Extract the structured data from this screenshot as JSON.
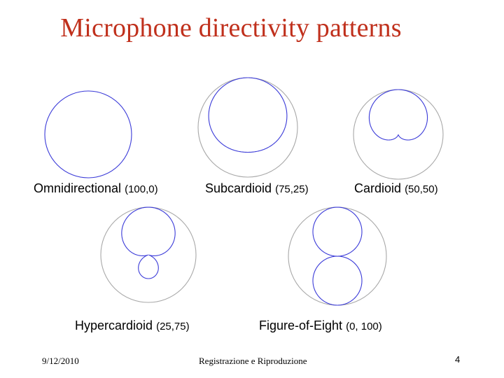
{
  "title": "Microphone directivity patterns",
  "colors": {
    "title": "#c0301c",
    "pattern": "#3a3ad8",
    "reference_circle": "#a8a8a8"
  },
  "patterns": [
    {
      "name": "Omnidirectional",
      "value": "(100,0)",
      "omni": 100,
      "dipole": 0
    },
    {
      "name": "Subcardioid",
      "value": "(75,25)",
      "omni": 75,
      "dipole": 25
    },
    {
      "name": "Cardioid",
      "value": "(50,50)",
      "omni": 50,
      "dipole": 50
    },
    {
      "name": "Hypercardioid",
      "value": "(25,75)",
      "omni": 25,
      "dipole": 75
    },
    {
      "name": "Figure-of-Eight",
      "value": "(0, 100)",
      "omni": 0,
      "dipole": 100
    }
  ],
  "footer": {
    "date": "9/12/2010",
    "center": "Registrazione e Riproduzione",
    "page": "4"
  }
}
